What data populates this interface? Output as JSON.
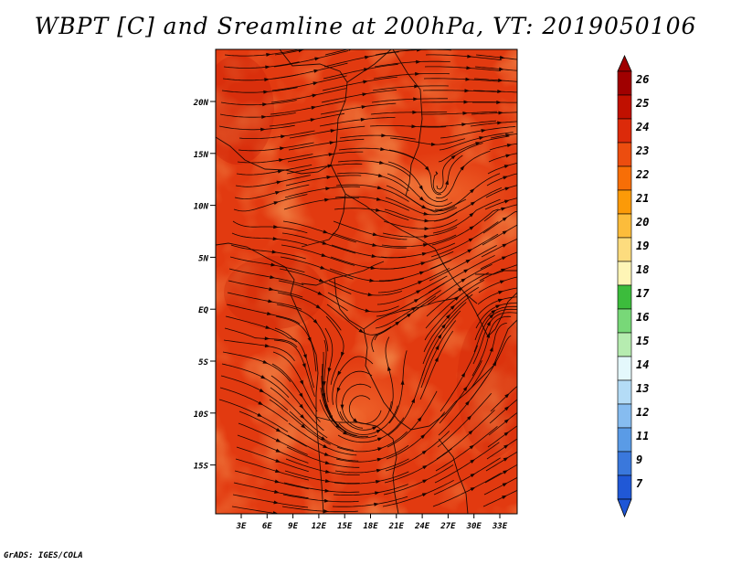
{
  "title": "WBPT [C] and Sreamline at 200hPa, VT: 2019050106",
  "footer": "GrADS: IGES/COLA",
  "map": {
    "lat_labels": [
      "20N",
      "15N",
      "10N",
      "5N",
      "EQ",
      "5S",
      "10S",
      "15S"
    ],
    "lon_labels": [
      "3E",
      "6E",
      "9E",
      "12E",
      "15E",
      "18E",
      "21E",
      "24E",
      "27E",
      "30E",
      "33E"
    ]
  },
  "colorbar": {
    "labels": [
      "26",
      "25",
      "24",
      "23",
      "22",
      "21",
      "20",
      "19",
      "18",
      "17",
      "16",
      "15",
      "14",
      "13",
      "12",
      "11",
      "9",
      "7"
    ],
    "colors": [
      "#a00000",
      "#c01000",
      "#dc2a0a",
      "#ec4d0f",
      "#f76e06",
      "#fb9a08",
      "#fcbc3b",
      "#fddc7e",
      "#fef5b6",
      "#3cbc3c",
      "#78d878",
      "#b6ecb0",
      "#e4f8fc",
      "#b4dcf6",
      "#86bcf0",
      "#5a9be6",
      "#3a78dc",
      "#2058d6"
    ],
    "top_color": "#a00000",
    "bottom_color": "#1e56d6"
  },
  "field_colors": {
    "base": "#e23a10",
    "warm": "#d42a0a",
    "cool": "#f06a2a"
  }
}
